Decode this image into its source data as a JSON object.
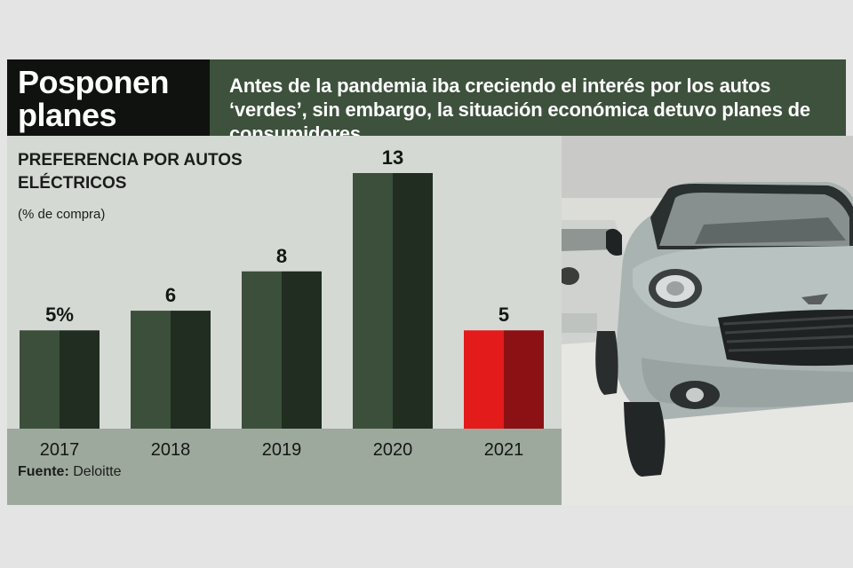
{
  "header": {
    "title": "Posponen planes",
    "subtitle": "Antes de la pandemia iba creciendo el interés por los autos ‘verdes’, sin embargo, la situación económica detuvo planes de consumidores."
  },
  "chart_data": {
    "type": "bar",
    "title": "PREFERENCIA POR AUTOS ELÉCTRICOS",
    "unit_label": "(% de compra)",
    "categories": [
      "2017",
      "2018",
      "2019",
      "2020",
      "2021"
    ],
    "values": [
      5,
      6,
      8,
      13,
      5
    ],
    "data_labels": [
      "5%",
      "6",
      "8",
      "13",
      "5"
    ],
    "ylim": [
      0,
      13
    ],
    "grid": false,
    "colors": {
      "normal_light": "#3c4f3b",
      "normal_dark": "#202d20",
      "highlight_light": "#e31b1b",
      "highlight_dark": "#8c1114"
    },
    "highlight_index": 4
  },
  "source": {
    "label": "Fuente:",
    "value": "Deloitte"
  }
}
